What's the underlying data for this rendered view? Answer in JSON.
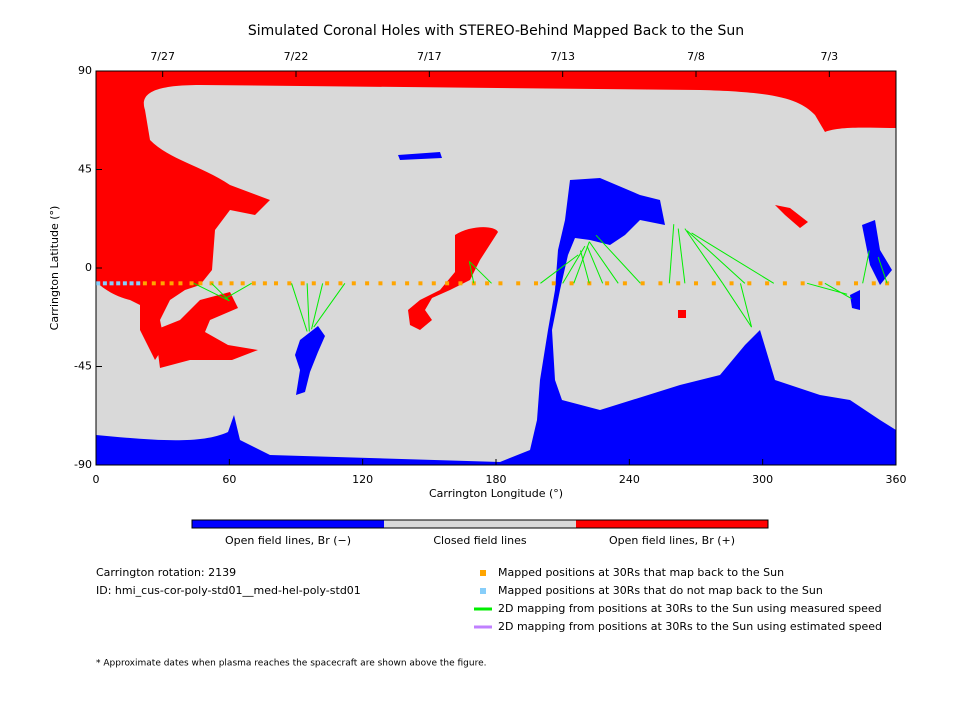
{
  "chart_data": {
    "type": "scatter",
    "title": "Simulated Coronal Holes with STEREO-Behind Mapped Back to the Sun",
    "x_label": "Carrington Longitude (°)",
    "y_label": "Carrington Latitude (°)",
    "xlim": [
      0,
      360
    ],
    "ylim": [
      -90,
      90
    ],
    "xticks": [
      0,
      60,
      120,
      180,
      240,
      300,
      360
    ],
    "yticks": [
      90,
      45,
      0,
      -45,
      -90
    ],
    "x2ticks": [
      {
        "value": 30,
        "label": "7/27"
      },
      {
        "value": 90,
        "label": "7/22"
      },
      {
        "value": 150,
        "label": "7/17"
      },
      {
        "value": 210,
        "label": "7/13"
      },
      {
        "value": 270,
        "label": "7/8"
      },
      {
        "value": 330,
        "label": "7/3"
      }
    ],
    "colorbar": [
      {
        "label": "Open field lines, Br (−)",
        "color": "#0000ff"
      },
      {
        "label": "Closed field lines",
        "color": "#d9d9d9"
      },
      {
        "label": "Open field lines, Br (+)",
        "color": "#ff0000"
      }
    ],
    "series": [
      {
        "name": "Mapped positions at 30Rs that map back to the Sun",
        "color": "#ffa500",
        "x": [
          22,
          26,
          30,
          34,
          38,
          43,
          47,
          52,
          56,
          61,
          66,
          71,
          76,
          81,
          87,
          93,
          98,
          104,
          110,
          116,
          122,
          128,
          134,
          140,
          146,
          152,
          158,
          164,
          170,
          176,
          182,
          190,
          198,
          206,
          214,
          222,
          230,
          238,
          246,
          254,
          262,
          270,
          278,
          286,
          294,
          302,
          310,
          318,
          326,
          334,
          342,
          350,
          356
        ],
        "y": [
          -7,
          -7,
          -7,
          -7,
          -7,
          -7,
          -7,
          -7,
          -7,
          -7,
          -7,
          -7,
          -7,
          -7,
          -7,
          -7,
          -7,
          -7,
          -7,
          -7,
          -7,
          -7,
          -7,
          -7,
          -7,
          -7,
          -7,
          -7,
          -7,
          -7,
          -7,
          -7,
          -7,
          -7,
          -7,
          -7,
          -7,
          -7,
          -7,
          -7,
          -7,
          -7,
          -7,
          -7,
          -7,
          -7,
          -7,
          -7,
          -7,
          -7,
          -7,
          -7,
          -7
        ]
      },
      {
        "name": "Mapped positions at 30Rs that do not map back to the Sun",
        "color": "#87cefa",
        "x": [
          1,
          4,
          7,
          10,
          13,
          16,
          19
        ],
        "y": [
          -7,
          -7,
          -7,
          -7,
          -7,
          -7,
          -7
        ]
      },
      {
        "name": "2D mapping from positions at 30Rs to the Sun using measured speed",
        "color": "#00ee00",
        "x0": [
          44,
          52,
          70,
          88,
          95,
          102,
          112,
          170,
          178,
          200,
          210,
          215,
          222,
          228,
          235,
          245,
          258,
          265,
          282,
          292,
          305,
          282,
          290,
          328,
          345,
          356,
          320
        ],
        "y0": [
          -7,
          -7,
          -7,
          -7,
          -7,
          -7,
          -7,
          -7,
          -7,
          -7,
          -7,
          -7,
          -7,
          -7,
          -7,
          -7,
          -7,
          -7,
          -7,
          -7,
          -7,
          -7,
          -7,
          -7,
          -7,
          -7,
          -7
        ],
        "x1": [
          60,
          60,
          58,
          95,
          96,
          97,
          98,
          168,
          168,
          217,
          220,
          222,
          218,
          221,
          222,
          225,
          260,
          262,
          265,
          266,
          268,
          295,
          295,
          340,
          348,
          352,
          338
        ],
        "y1": [
          -15,
          -15,
          -14,
          -29,
          -29,
          -28,
          -27,
          3,
          3,
          6,
          10,
          12,
          8,
          10,
          12,
          15,
          20,
          18,
          18,
          17,
          16,
          -27,
          -27,
          -14,
          8,
          5,
          -12
        ]
      },
      {
        "name": "2D mapping from positions at 30Rs to the Sun using estimated speed",
        "color": "#c080ff"
      }
    ],
    "rotation": "Carrington rotation: 2139",
    "id": "ID: hmi_cus-cor-poly-std01__med-hel-poly-std01",
    "footnote": "* Approximate dates when plasma reaches the spacecraft are shown above the figure."
  }
}
